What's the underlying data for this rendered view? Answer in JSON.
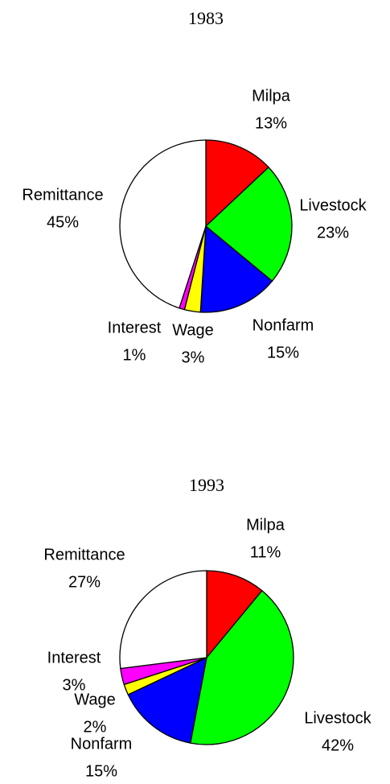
{
  "chart_data": [
    {
      "type": "pie",
      "title": "1983",
      "categories": [
        "Milpa",
        "Livestock",
        "Nonfarm",
        "Wage",
        "Interest",
        "Remittance"
      ],
      "values": [
        13,
        23,
        15,
        3,
        1,
        45
      ],
      "value_labels": [
        "13%",
        "23%",
        "15%",
        "3%",
        "1%",
        "45%"
      ],
      "colors": [
        "#ff0000",
        "#00ff00",
        "#0000ff",
        "#ffff00",
        "#ff00ff",
        "#ffffff"
      ]
    },
    {
      "type": "pie",
      "title": "1993",
      "categories": [
        "Milpa",
        "Livestock",
        "Nonfarm",
        "Wage",
        "Interest",
        "Remittance"
      ],
      "values": [
        11,
        42,
        15,
        2,
        3,
        27
      ],
      "value_labels": [
        "11%",
        "42%",
        "15%",
        "2%",
        "3%",
        "27%"
      ],
      "colors": [
        "#ff0000",
        "#00ff00",
        "#0000ff",
        "#ffff00",
        "#ff00ff",
        "#ffffff"
      ]
    }
  ]
}
